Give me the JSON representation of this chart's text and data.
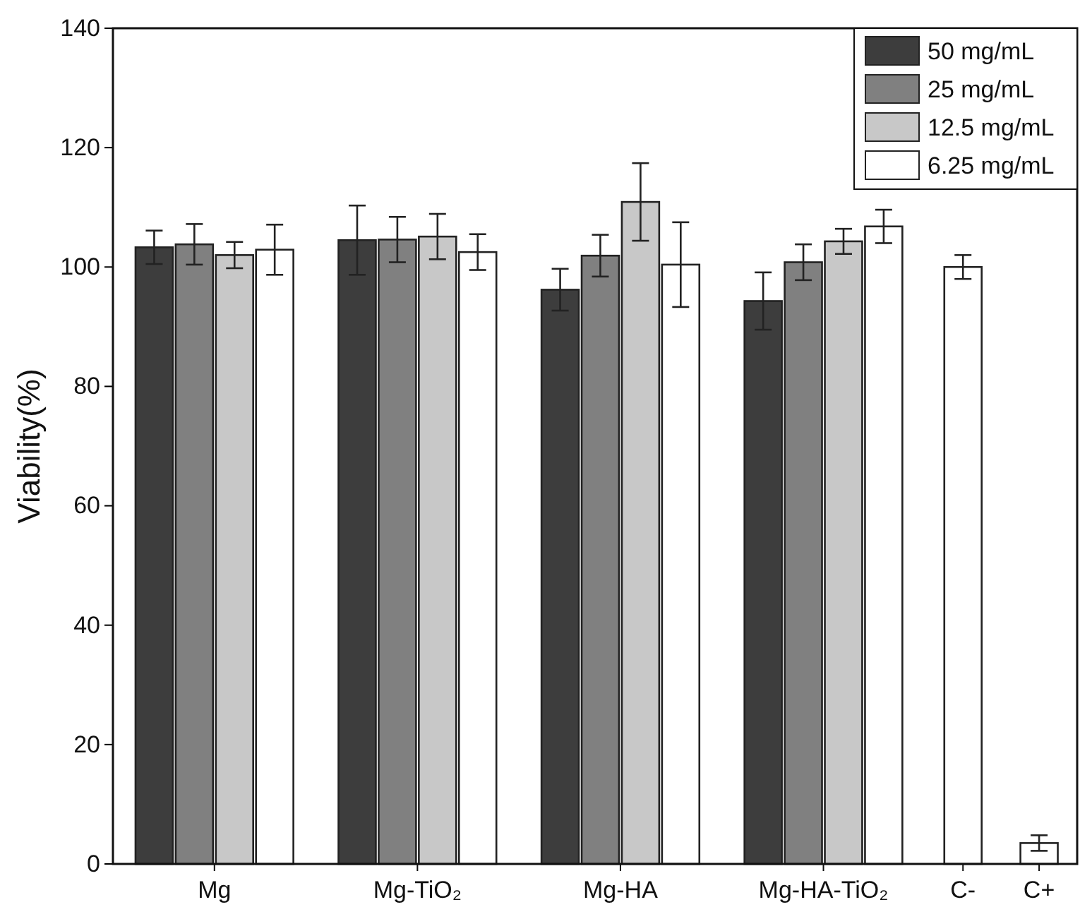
{
  "chart_data": {
    "type": "bar",
    "ylabel": "Viability(%)",
    "categories": [
      "Mg",
      "Mg-TiO₂",
      "Mg-HA",
      "Mg-HA-TiO₂",
      "C-",
      "C+"
    ],
    "series": [
      {
        "name": "50 mg/mL",
        "color": "#3d3d3d",
        "values": [
          103.3,
          104.5,
          96.2,
          94.3,
          null,
          null
        ],
        "errors": [
          2.8,
          5.8,
          3.5,
          4.8,
          null,
          null
        ]
      },
      {
        "name": "25 mg/mL",
        "color": "#808080",
        "values": [
          103.8,
          104.6,
          101.9,
          100.8,
          null,
          null
        ],
        "errors": [
          3.4,
          3.8,
          3.5,
          3.0,
          null,
          null
        ]
      },
      {
        "name": "12.5 mg/mL",
        "color": "#c8c8c8",
        "values": [
          102.0,
          105.1,
          110.9,
          104.3,
          null,
          null
        ],
        "errors": [
          2.2,
          3.8,
          6.5,
          2.1,
          null,
          null
        ]
      },
      {
        "name": "6.25 mg/mL",
        "color": "#ffffff",
        "values": [
          102.9,
          102.5,
          100.4,
          106.8,
          null,
          null
        ],
        "errors": [
          4.2,
          3.0,
          7.1,
          2.8,
          null,
          null
        ]
      },
      {
        "color": "#ffffff",
        "values": [
          null,
          null,
          null,
          null,
          100,
          3.5
        ],
        "errors": [
          null,
          null,
          null,
          null,
          2.0,
          1.3
        ]
      }
    ],
    "ylim": [
      0,
      140
    ],
    "yticks": [
      0,
      20,
      40,
      60,
      80,
      100,
      120,
      140
    ],
    "legend": "top right",
    "grid": false
  }
}
